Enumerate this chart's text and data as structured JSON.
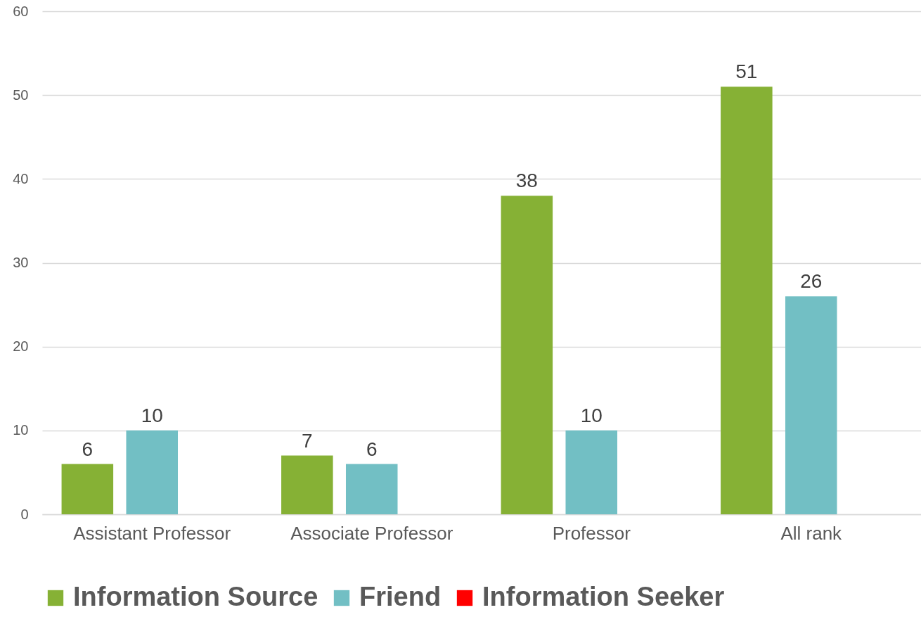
{
  "chart_data": {
    "type": "bar",
    "categories": [
      "Assistant Professor",
      "Associate Professor",
      "Professor",
      "All rank"
    ],
    "series": [
      {
        "name": "Information Source",
        "color": "#86b135",
        "values": [
          6,
          7,
          38,
          51
        ]
      },
      {
        "name": "Friend",
        "color": "#72bfc4",
        "values": [
          10,
          6,
          10,
          26
        ]
      },
      {
        "name": "Information Seeker",
        "color": "#ff0000",
        "values": [
          null,
          null,
          null,
          null
        ]
      }
    ],
    "ylim": [
      0,
      60
    ],
    "yticks": [
      0,
      10,
      20,
      30,
      40,
      50,
      60
    ],
    "grid": "y",
    "legend": "bottom",
    "data_labels": true
  }
}
